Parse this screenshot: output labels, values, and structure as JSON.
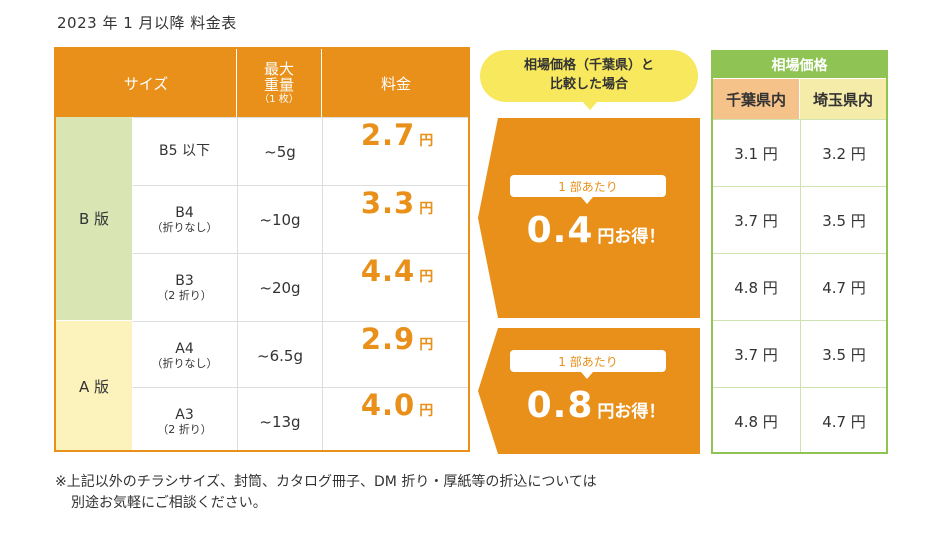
{
  "page_title": "2023 年 1 月以降 料金表",
  "price_table": {
    "headers": {
      "size": "サイズ",
      "weight_main": "最大重量",
      "weight_sub": "（1 枚）",
      "fee": "料金"
    },
    "categories": {
      "b": "B 版",
      "a": "A 版"
    },
    "rows": [
      {
        "size": "B5 以下",
        "note": "",
        "weight": "~5g",
        "price": "2.7",
        "unit": "円"
      },
      {
        "size": "B4",
        "note": "（折りなし）",
        "weight": "~10g",
        "price": "3.3",
        "unit": "円"
      },
      {
        "size": "B3",
        "note": "（2 折り）",
        "weight": "~20g",
        "price": "4.4",
        "unit": "円"
      },
      {
        "size": "A4",
        "note": "（折りなし）",
        "weight": "~6.5g",
        "price": "2.9",
        "unit": "円"
      },
      {
        "size": "A3",
        "note": "（2 折り）",
        "weight": "~13g",
        "price": "4.0",
        "unit": "円"
      }
    ]
  },
  "comparison": {
    "bubble_line1": "相場価格（千葉県）と",
    "bubble_line2": "比較した場合",
    "savings": [
      {
        "per_label": "1 部あたり",
        "amount": "0.4",
        "text": "円お得！"
      },
      {
        "per_label": "1 部あたり",
        "amount": "0.8",
        "text": "円お得！"
      }
    ]
  },
  "market_table": {
    "title": "相場価格",
    "col1": "千葉県内",
    "col2": "埼玉県内",
    "rows": [
      [
        "3.1 円",
        "3.2 円"
      ],
      [
        "3.7 円",
        "3.5 円"
      ],
      [
        "4.8 円",
        "4.7 円"
      ],
      [
        "3.7 円",
        "3.5 円"
      ],
      [
        "4.8 円",
        "4.7 円"
      ]
    ]
  },
  "footnote": {
    "line1": "※上記以外のチラシサイズ、封筒、カタログ冊子、DM 折り・厚紙等の折込については",
    "line2": "別途お気軽にご相談ください。"
  },
  "colors": {
    "accent": "#e8901a",
    "green": "#8fc455",
    "bubble": "#f7e85e"
  }
}
